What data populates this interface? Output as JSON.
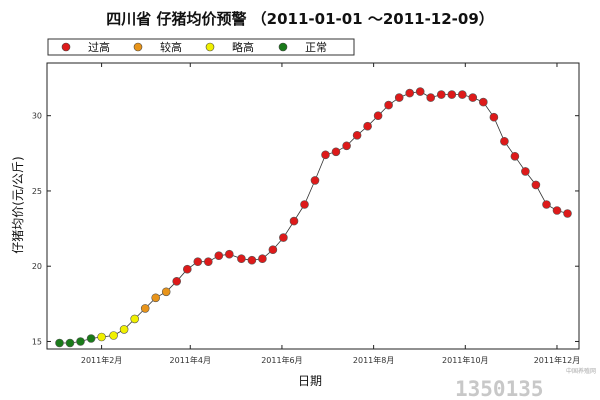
{
  "chart_data": {
    "type": "line",
    "title": "四川省 仔猪均价预警 （2011-01-01 ～2011-12-09）",
    "xlabel": "日期",
    "ylabel": "仔猪均价(元/公斤)",
    "ylim": [
      14.5,
      33.5
    ],
    "yticks": [
      15,
      20,
      25,
      30
    ],
    "xlim": [
      "2011-01-01",
      "2011-12-09"
    ],
    "xticks": [
      "2011年2月",
      "2011年4月",
      "2011年6月",
      "2011年8月",
      "2011年10月",
      "2011年12月"
    ],
    "xtick_dates": [
      "2011-02-01",
      "2011-04-01",
      "2011-06-01",
      "2011-08-01",
      "2011-10-01",
      "2011-12-01"
    ],
    "grid": false,
    "legend": [
      {
        "label": "过高",
        "color": "#dd1a1a"
      },
      {
        "label": "较高",
        "color": "#e8941a"
      },
      {
        "label": "略高",
        "color": "#f0f000"
      },
      {
        "label": "正常",
        "color": "#1a7a1a"
      }
    ],
    "series": [
      {
        "points": [
          {
            "x": "2011-01-04",
            "y": 14.9,
            "level": "正常"
          },
          {
            "x": "2011-01-11",
            "y": 14.9,
            "level": "正常"
          },
          {
            "x": "2011-01-18",
            "y": 15.0,
            "level": "正常"
          },
          {
            "x": "2011-01-25",
            "y": 15.2,
            "level": "正常"
          },
          {
            "x": "2011-02-01",
            "y": 15.3,
            "level": "略高"
          },
          {
            "x": "2011-02-09",
            "y": 15.4,
            "level": "略高"
          },
          {
            "x": "2011-02-16",
            "y": 15.8,
            "level": "略高"
          },
          {
            "x": "2011-02-23",
            "y": 16.5,
            "level": "略高"
          },
          {
            "x": "2011-03-02",
            "y": 17.2,
            "level": "较高"
          },
          {
            "x": "2011-03-09",
            "y": 17.9,
            "level": "较高"
          },
          {
            "x": "2011-03-16",
            "y": 18.3,
            "level": "较高"
          },
          {
            "x": "2011-03-23",
            "y": 19.0,
            "level": "过高"
          },
          {
            "x": "2011-03-30",
            "y": 19.8,
            "level": "过高"
          },
          {
            "x": "2011-04-06",
            "y": 20.3,
            "level": "过高"
          },
          {
            "x": "2011-04-13",
            "y": 20.3,
            "level": "过高"
          },
          {
            "x": "2011-04-20",
            "y": 20.7,
            "level": "过高"
          },
          {
            "x": "2011-04-27",
            "y": 20.8,
            "level": "过高"
          },
          {
            "x": "2011-05-05",
            "y": 20.5,
            "level": "过高"
          },
          {
            "x": "2011-05-12",
            "y": 20.4,
            "level": "过高"
          },
          {
            "x": "2011-05-19",
            "y": 20.5,
            "level": "过高"
          },
          {
            "x": "2011-05-26",
            "y": 21.1,
            "level": "过高"
          },
          {
            "x": "2011-06-02",
            "y": 21.9,
            "level": "过高"
          },
          {
            "x": "2011-06-09",
            "y": 23.0,
            "level": "过高"
          },
          {
            "x": "2011-06-16",
            "y": 24.1,
            "level": "过高"
          },
          {
            "x": "2011-06-23",
            "y": 25.7,
            "level": "过高"
          },
          {
            "x": "2011-06-30",
            "y": 27.4,
            "level": "过高"
          },
          {
            "x": "2011-07-07",
            "y": 27.6,
            "level": "过高"
          },
          {
            "x": "2011-07-14",
            "y": 28.0,
            "level": "过高"
          },
          {
            "x": "2011-07-21",
            "y": 28.7,
            "level": "过高"
          },
          {
            "x": "2011-07-28",
            "y": 29.3,
            "level": "过高"
          },
          {
            "x": "2011-08-04",
            "y": 30.0,
            "level": "过高"
          },
          {
            "x": "2011-08-11",
            "y": 30.7,
            "level": "过高"
          },
          {
            "x": "2011-08-18",
            "y": 31.2,
            "level": "过高"
          },
          {
            "x": "2011-08-25",
            "y": 31.5,
            "level": "过高"
          },
          {
            "x": "2011-09-01",
            "y": 31.6,
            "level": "过高"
          },
          {
            "x": "2011-09-08",
            "y": 31.2,
            "level": "过高"
          },
          {
            "x": "2011-09-15",
            "y": 31.4,
            "level": "过高"
          },
          {
            "x": "2011-09-22",
            "y": 31.4,
            "level": "过高"
          },
          {
            "x": "2011-09-29",
            "y": 31.4,
            "level": "过高"
          },
          {
            "x": "2011-10-06",
            "y": 31.2,
            "level": "过高"
          },
          {
            "x": "2011-10-13",
            "y": 30.9,
            "level": "过高"
          },
          {
            "x": "2011-10-20",
            "y": 29.9,
            "level": "过高"
          },
          {
            "x": "2011-10-27",
            "y": 28.3,
            "level": "过高"
          },
          {
            "x": "2011-11-03",
            "y": 27.3,
            "level": "过高"
          },
          {
            "x": "2011-11-10",
            "y": 26.3,
            "level": "过高"
          },
          {
            "x": "2011-11-17",
            "y": 25.4,
            "level": "过高"
          },
          {
            "x": "2011-11-24",
            "y": 24.1,
            "level": "过高"
          },
          {
            "x": "2011-12-01",
            "y": 23.7,
            "level": "过高"
          },
          {
            "x": "2011-12-08",
            "y": 23.5,
            "level": "过高"
          }
        ]
      }
    ]
  },
  "watermark": {
    "text": "1350135",
    "sub": "中国养殖网"
  }
}
